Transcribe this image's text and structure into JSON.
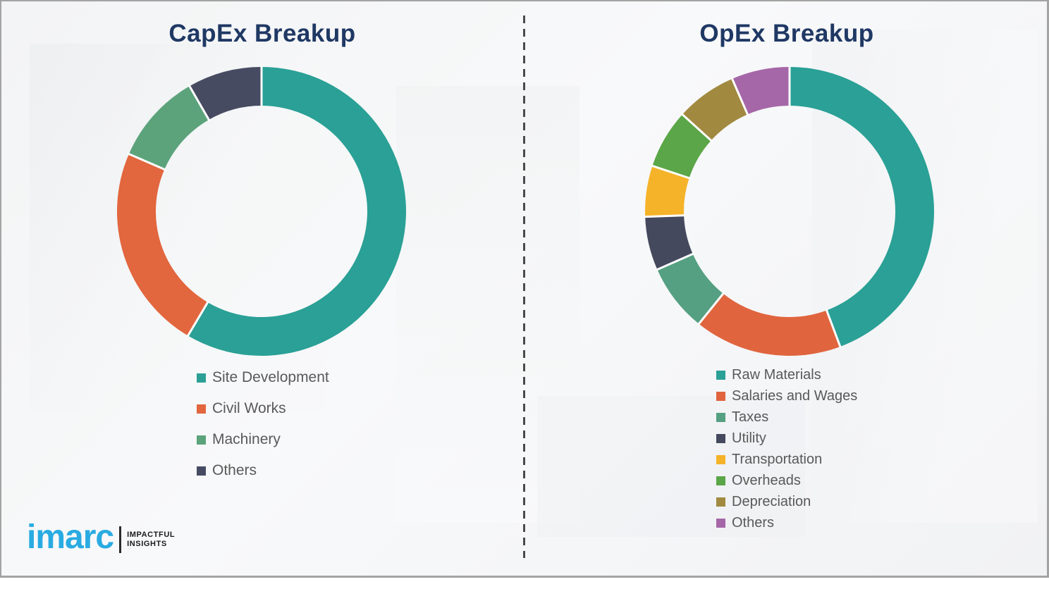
{
  "chart_data": [
    {
      "type": "pie",
      "subtype": "donut",
      "title": "CapEx Breakup",
      "categories": [
        "Site Development",
        "Civil Works",
        "Machinery",
        "Others"
      ],
      "values": [
        58.5,
        23.0,
        10.2,
        8.3
      ],
      "colors": [
        "#2aa096",
        "#e2663e",
        "#5ca37c",
        "#474b62"
      ],
      "start_angle": 0,
      "donut_hole_ratio": 0.73,
      "legend_position": "below-left",
      "data_labels": "none"
    },
    {
      "type": "pie",
      "subtype": "donut",
      "title": "OpEx Breakup",
      "categories": [
        "Raw Materials",
        "Salaries and Wages",
        "Taxes",
        "Utility",
        "Transportation",
        "Overheads",
        "Depreciation",
        "Others"
      ],
      "values": [
        44.3,
        16.5,
        7.6,
        6.0,
        5.7,
        6.6,
        6.8,
        6.5
      ],
      "colors": [
        "#2aa096",
        "#e0653e",
        "#55a082",
        "#44495e",
        "#f5b32a",
        "#5ba648",
        "#a18a40",
        "#a567a8"
      ],
      "start_angle": 0,
      "donut_hole_ratio": 0.73,
      "legend_position": "below-left",
      "data_labels": "none"
    }
  ],
  "branding": {
    "logo_text": "imarc",
    "logo_color": "#29abe2",
    "tagline_line1": "IMPACTFUL",
    "tagline_line2": "INSIGHTS"
  },
  "style": {
    "title_color": "#1f3864",
    "legend_text_color": "#595959",
    "divider_color": "#4a4a4a",
    "segment_gap_color": "#ffffff"
  }
}
